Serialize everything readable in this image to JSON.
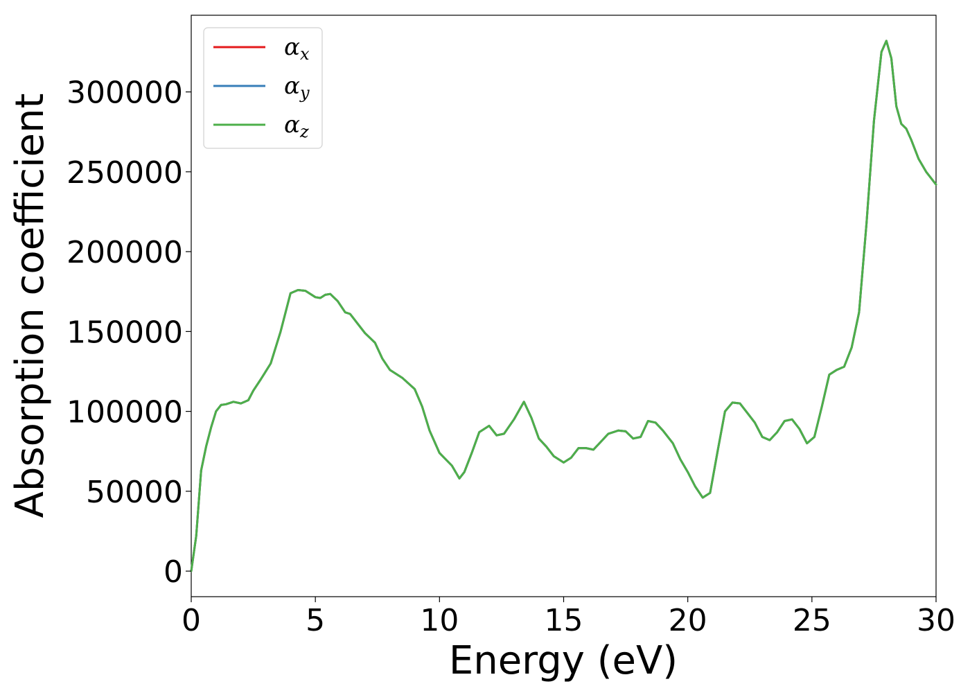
{
  "chart_data": {
    "type": "line",
    "title": "",
    "xlabel": "Energy (eV)",
    "ylabel": "Absorption coefficient",
    "xlim": [
      0,
      30
    ],
    "ylim": [
      -16000,
      348000
    ],
    "xticks": [
      0,
      5,
      10,
      15,
      20,
      25,
      30
    ],
    "yticks": [
      0,
      50000,
      100000,
      150000,
      200000,
      250000,
      300000
    ],
    "grid": false,
    "legend_position": "top-left",
    "series": [
      {
        "name": "α",
        "subscript": "x",
        "color": "#e41a1c",
        "x": [
          0,
          0.2,
          0.4,
          0.6,
          0.8,
          1.0,
          1.2,
          1.4,
          1.7,
          2.0,
          2.3,
          2.5,
          2.8,
          3.2,
          3.6,
          4.0,
          4.3,
          4.6,
          5.0,
          5.2,
          5.4,
          5.6,
          5.9,
          6.2,
          6.4,
          6.7,
          7.0,
          7.4,
          7.7,
          8.0,
          8.5,
          9.0,
          9.3,
          9.6,
          10.0,
          10.5,
          10.8,
          11.0,
          11.3,
          11.6,
          12.0,
          12.3,
          12.6,
          13.0,
          13.4,
          13.7,
          14.0,
          14.3,
          14.6,
          15.0,
          15.3,
          15.6,
          15.9,
          16.2,
          16.5,
          16.8,
          17.2,
          17.5,
          17.8,
          18.1,
          18.4,
          18.7,
          19.0,
          19.4,
          19.7,
          20.0,
          20.3,
          20.6,
          20.9,
          21.2,
          21.5,
          21.8,
          22.1,
          22.4,
          22.7,
          23.0,
          23.3,
          23.6,
          23.9,
          24.2,
          24.5,
          24.8,
          25.1,
          25.4,
          25.7,
          26.0,
          26.3,
          26.6,
          26.9,
          27.2,
          27.5,
          27.8,
          28.0,
          28.2,
          28.4,
          28.6,
          28.8,
          29.0,
          29.3,
          29.6,
          30.0
        ],
        "values": [
          0,
          22000,
          63000,
          78000,
          90000,
          100000,
          104000,
          104500,
          106000,
          105000,
          107000,
          113000,
          120000,
          130000,
          150000,
          174000,
          176000,
          175500,
          171500,
          171000,
          173000,
          173500,
          169000,
          162000,
          161000,
          155000,
          149000,
          143000,
          133000,
          126000,
          121000,
          114000,
          103000,
          88000,
          74000,
          66000,
          58000,
          62000,
          74000,
          87000,
          91000,
          85000,
          86000,
          95000,
          106000,
          96000,
          83000,
          78000,
          72000,
          68000,
          71000,
          77000,
          77000,
          76000,
          81000,
          86000,
          88000,
          87500,
          83000,
          84000,
          94000,
          93000,
          88000,
          80000,
          70000,
          62000,
          53000,
          46000,
          49000,
          75000,
          100000,
          105500,
          105000,
          99000,
          93000,
          84000,
          82000,
          87000,
          94000,
          95000,
          89000,
          80000,
          84000,
          103000,
          123000,
          126000,
          128000,
          140000,
          162000,
          218000,
          282000,
          325000,
          332000,
          321000,
          291000,
          280000,
          277000,
          270000,
          258000,
          250000,
          242000
        ]
      },
      {
        "name": "α",
        "subscript": "y",
        "color": "#377eb8",
        "x": [
          0,
          0.2,
          0.4,
          0.6,
          0.8,
          1.0,
          1.2,
          1.4,
          1.7,
          2.0,
          2.3,
          2.5,
          2.8,
          3.2,
          3.6,
          4.0,
          4.3,
          4.6,
          5.0,
          5.2,
          5.4,
          5.6,
          5.9,
          6.2,
          6.4,
          6.7,
          7.0,
          7.4,
          7.7,
          8.0,
          8.5,
          9.0,
          9.3,
          9.6,
          10.0,
          10.5,
          10.8,
          11.0,
          11.3,
          11.6,
          12.0,
          12.3,
          12.6,
          13.0,
          13.4,
          13.7,
          14.0,
          14.3,
          14.6,
          15.0,
          15.3,
          15.6,
          15.9,
          16.2,
          16.5,
          16.8,
          17.2,
          17.5,
          17.8,
          18.1,
          18.4,
          18.7,
          19.0,
          19.4,
          19.7,
          20.0,
          20.3,
          20.6,
          20.9,
          21.2,
          21.5,
          21.8,
          22.1,
          22.4,
          22.7,
          23.0,
          23.3,
          23.6,
          23.9,
          24.2,
          24.5,
          24.8,
          25.1,
          25.4,
          25.7,
          26.0,
          26.3,
          26.6,
          26.9,
          27.2,
          27.5,
          27.8,
          28.0,
          28.2,
          28.4,
          28.6,
          28.8,
          29.0,
          29.3,
          29.6,
          30.0
        ],
        "values": [
          0,
          22000,
          63000,
          78000,
          90000,
          100000,
          104000,
          104500,
          106000,
          105000,
          107000,
          113000,
          120000,
          130000,
          150000,
          174000,
          176000,
          175500,
          171500,
          171000,
          173000,
          173500,
          169000,
          162000,
          161000,
          155000,
          149000,
          143000,
          133000,
          126000,
          121000,
          114000,
          103000,
          88000,
          74000,
          66000,
          58000,
          62000,
          74000,
          87000,
          91000,
          85000,
          86000,
          95000,
          106000,
          96000,
          83000,
          78000,
          72000,
          68000,
          71000,
          77000,
          77000,
          76000,
          81000,
          86000,
          88000,
          87500,
          83000,
          84000,
          94000,
          93000,
          88000,
          80000,
          70000,
          62000,
          53000,
          46000,
          49000,
          75000,
          100000,
          105500,
          105000,
          99000,
          93000,
          84000,
          82000,
          87000,
          94000,
          95000,
          89000,
          80000,
          84000,
          103000,
          123000,
          126000,
          128000,
          140000,
          162000,
          218000,
          282000,
          325000,
          332000,
          321000,
          291000,
          280000,
          277000,
          270000,
          258000,
          250000,
          242000
        ]
      },
      {
        "name": "α",
        "subscript": "z",
        "color": "#4daf4a",
        "x": [
          0,
          0.2,
          0.4,
          0.6,
          0.8,
          1.0,
          1.2,
          1.4,
          1.7,
          2.0,
          2.3,
          2.5,
          2.8,
          3.2,
          3.6,
          4.0,
          4.3,
          4.6,
          5.0,
          5.2,
          5.4,
          5.6,
          5.9,
          6.2,
          6.4,
          6.7,
          7.0,
          7.4,
          7.7,
          8.0,
          8.5,
          9.0,
          9.3,
          9.6,
          10.0,
          10.5,
          10.8,
          11.0,
          11.3,
          11.6,
          12.0,
          12.3,
          12.6,
          13.0,
          13.4,
          13.7,
          14.0,
          14.3,
          14.6,
          15.0,
          15.3,
          15.6,
          15.9,
          16.2,
          16.5,
          16.8,
          17.2,
          17.5,
          17.8,
          18.1,
          18.4,
          18.7,
          19.0,
          19.4,
          19.7,
          20.0,
          20.3,
          20.6,
          20.9,
          21.2,
          21.5,
          21.8,
          22.1,
          22.4,
          22.7,
          23.0,
          23.3,
          23.6,
          23.9,
          24.2,
          24.5,
          24.8,
          25.1,
          25.4,
          25.7,
          26.0,
          26.3,
          26.6,
          26.9,
          27.2,
          27.5,
          27.8,
          28.0,
          28.2,
          28.4,
          28.6,
          28.8,
          29.0,
          29.3,
          29.6,
          30.0
        ],
        "values": [
          0,
          22000,
          63000,
          78000,
          90000,
          100000,
          104000,
          104500,
          106000,
          105000,
          107000,
          113000,
          120000,
          130000,
          150000,
          174000,
          176000,
          175500,
          171500,
          171000,
          173000,
          173500,
          169000,
          162000,
          161000,
          155000,
          149000,
          143000,
          133000,
          126000,
          121000,
          114000,
          103000,
          88000,
          74000,
          66000,
          58000,
          62000,
          74000,
          87000,
          91000,
          85000,
          86000,
          95000,
          106000,
          96000,
          83000,
          78000,
          72000,
          68000,
          71000,
          77000,
          77000,
          76000,
          81000,
          86000,
          88000,
          87500,
          83000,
          84000,
          94000,
          93000,
          88000,
          80000,
          70000,
          62000,
          53000,
          46000,
          49000,
          75000,
          100000,
          105500,
          105000,
          99000,
          93000,
          84000,
          82000,
          87000,
          94000,
          95000,
          89000,
          80000,
          84000,
          103000,
          123000,
          126000,
          128000,
          140000,
          162000,
          218000,
          282000,
          325000,
          332000,
          321000,
          291000,
          280000,
          277000,
          270000,
          258000,
          250000,
          242000
        ]
      }
    ]
  }
}
